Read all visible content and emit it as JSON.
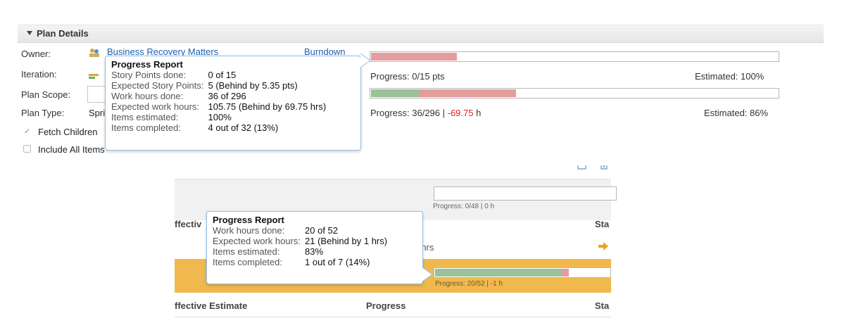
{
  "section": {
    "title": "Plan Details"
  },
  "fields": {
    "owner_label": "Owner:",
    "owner_value": "Business Recovery Matters",
    "burndown_link": "Burndown",
    "iteration_label": "Iteration:",
    "plan_scope_label": "Plan Scope:",
    "plan_type_label": "Plan Type:",
    "plan_type_value": "Spri",
    "fetch_children_label": "Fetch Children",
    "fetch_children_checked": true,
    "include_all_label": "Include All Items",
    "include_all_checked": false
  },
  "top_progress": {
    "bar1": {
      "red_fraction": 0.21,
      "text": "Progress: 0/15 pts",
      "estimated": "Estimated: 100%"
    },
    "bar2": {
      "green_fraction": 0.118,
      "red_fraction": 0.237,
      "text_prefix": "Progress: 36/296 | ",
      "text_neg": "-69.75",
      "text_suffix": " h",
      "estimated": "Estimated: 86%"
    }
  },
  "tooltip_top": {
    "title": "Progress Report",
    "rows": [
      {
        "k": "Story Points done:",
        "v": "0 of 15"
      },
      {
        "k": "Expected Story Points:",
        "v": "5 (Behind by 5.35 pts)"
      },
      {
        "k": "Work hours done:",
        "v": "36 of 296"
      },
      {
        "k": "Expected work hours:",
        "v": "105.75 (Behind by 69.75 hrs)"
      },
      {
        "k": "Items estimated:",
        "v": "100%"
      },
      {
        "k": "Items completed:",
        "v": "4 out of 32 (13%)"
      }
    ]
  },
  "lower": {
    "header_progress_text": "Progress: 0/48 | 0 h",
    "col_effective_partial": "ffectiv",
    "col_sta": "Sta",
    "hrs_partial": ")hrs",
    "row_progress": {
      "green_fraction": 0.72,
      "red_fraction": 0.04,
      "text_prefix": "Progress: 20/52 | ",
      "text_neg": "-1",
      "text_suffix": " h"
    },
    "footer_effective": "ffective Estimate",
    "footer_progress": "Progress",
    "footer_sta": "Sta"
  },
  "tooltip_lower": {
    "title": "Progress Report",
    "rows": [
      {
        "k": "Work hours done:",
        "v": "20 of 52"
      },
      {
        "k": "Expected work hours:",
        "v": "21 (Behind by 1 hrs)"
      },
      {
        "k": "Items estimated:",
        "v": "83%"
      },
      {
        "k": "Items completed:",
        "v": "1 out of 7 (14%)"
      }
    ]
  },
  "colors": {
    "accent_link": "#1a5fb0",
    "negative": "#e02020",
    "bar_green": "#9bc196",
    "bar_red": "#e59c9c",
    "band_orange": "#f0b94e"
  }
}
